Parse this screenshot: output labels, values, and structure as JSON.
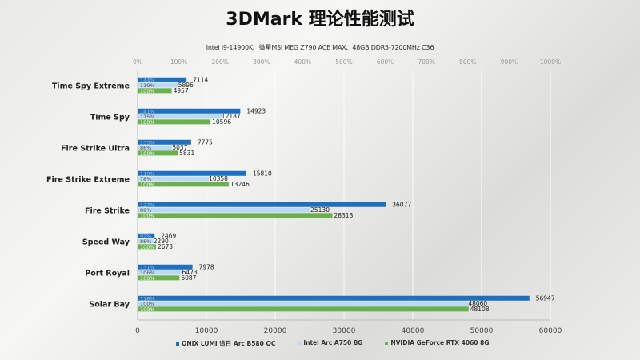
{
  "chart_data": {
    "type": "bar",
    "orientation": "horizontal",
    "title": "3DMark 理论性能测试",
    "subtitle": "Intel i9-14900K、微星MSI  MEG Z790 ACE MAX、48GB DDR5-7200MHz  C36",
    "categories": [
      "Time Spy Extreme",
      "Time Spy",
      "Fire Strike Ultra",
      "Fire Strike Extreme",
      "Fire Strike",
      "Speed Way",
      "Port Royal",
      "Solar Bay"
    ],
    "series": [
      {
        "name": "ONIX LUMI 追日 Arc B580 OC",
        "color": "#1f6fbf",
        "values": [
          7114,
          14923,
          7775,
          15810,
          36077,
          2469,
          7978,
          56947
        ],
        "percent_labels": [
          "144%",
          "141%",
          "133%",
          "119%",
          "127%",
          "92%",
          "131%",
          "118%"
        ]
      },
      {
        "name": "Intel Arc A750 8G",
        "color": "#bcd9f2",
        "values": [
          5896,
          12187,
          5037,
          10358,
          25130,
          2290,
          6473,
          48060
        ],
        "percent_labels": [
          "119%",
          "115%",
          "86%",
          "78%",
          "89%",
          "86%",
          "106%",
          "100%"
        ]
      },
      {
        "name": "NVIDIA GeForce RTX 4060 8G",
        "color": "#6ab04c",
        "values": [
          4957,
          10596,
          5831,
          13246,
          28313,
          2673,
          6087,
          48108
        ],
        "percent_labels": [
          "100%",
          "100%",
          "100%",
          "100%",
          "100%",
          "100%",
          "100%",
          "100%"
        ]
      }
    ],
    "xlim": [
      0,
      60000
    ],
    "x_ticks": [
      "0",
      "10000",
      "20000",
      "30000",
      "40000",
      "50000",
      "60000"
    ],
    "x_tick_values": [
      0,
      10000,
      20000,
      30000,
      40000,
      50000,
      60000
    ],
    "top_ticks": [
      "0%",
      "100%",
      "200%",
      "300%",
      "400%",
      "500%",
      "600%",
      "700%",
      "800%",
      "900%",
      "1000%"
    ],
    "grid": true,
    "legend_position": "bottom"
  }
}
